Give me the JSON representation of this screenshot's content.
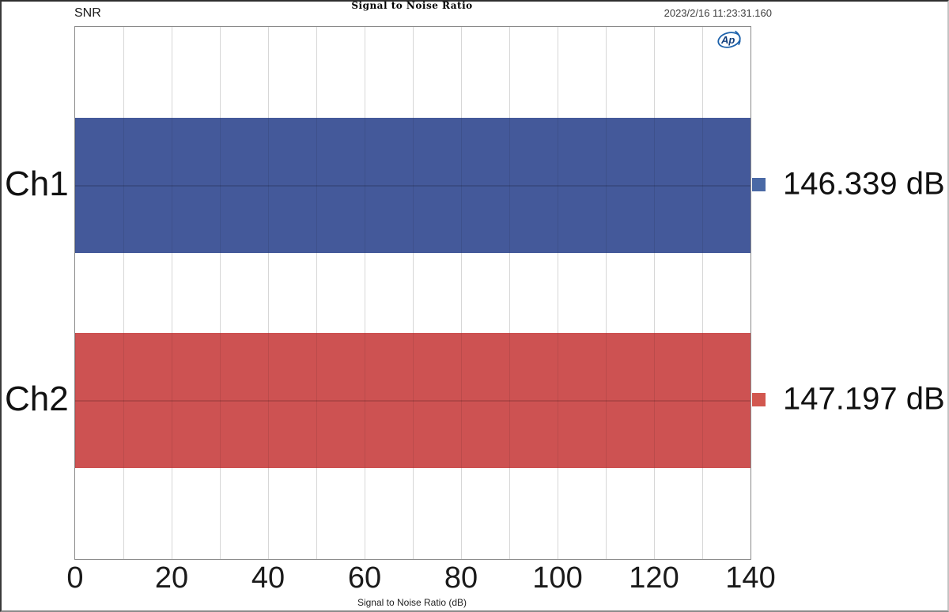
{
  "header": {
    "snr_label": "SNR",
    "title": "Signal to Noise Ratio",
    "timestamp": "2023/2/16 11:23:31.160"
  },
  "logo": {
    "text": "Ap",
    "color": "#1d62ab"
  },
  "chart_data": {
    "type": "bar",
    "orientation": "horizontal",
    "title": "Signal to Noise Ratio",
    "xlabel": "Signal to Noise Ratio (dB)",
    "categories": [
      "Ch1",
      "Ch2"
    ],
    "series": [
      {
        "name": "Ch1",
        "value": 146.339,
        "display": "146.339 dB",
        "color": "#44599a",
        "marker_color": "#4a69a5"
      },
      {
        "name": "Ch2",
        "value": 147.197,
        "display": "147.197 dB",
        "color": "#cd5252",
        "marker_color": "#d2574f"
      }
    ],
    "value_unit": "dB",
    "xlim": [
      0,
      140
    ],
    "xticks": [
      0,
      20,
      40,
      60,
      80,
      100,
      120,
      140
    ],
    "minor_tick_step": 10,
    "grid": "vertical",
    "legend_position": "right-of-bars",
    "bars_clipped_at_xmax": true
  }
}
